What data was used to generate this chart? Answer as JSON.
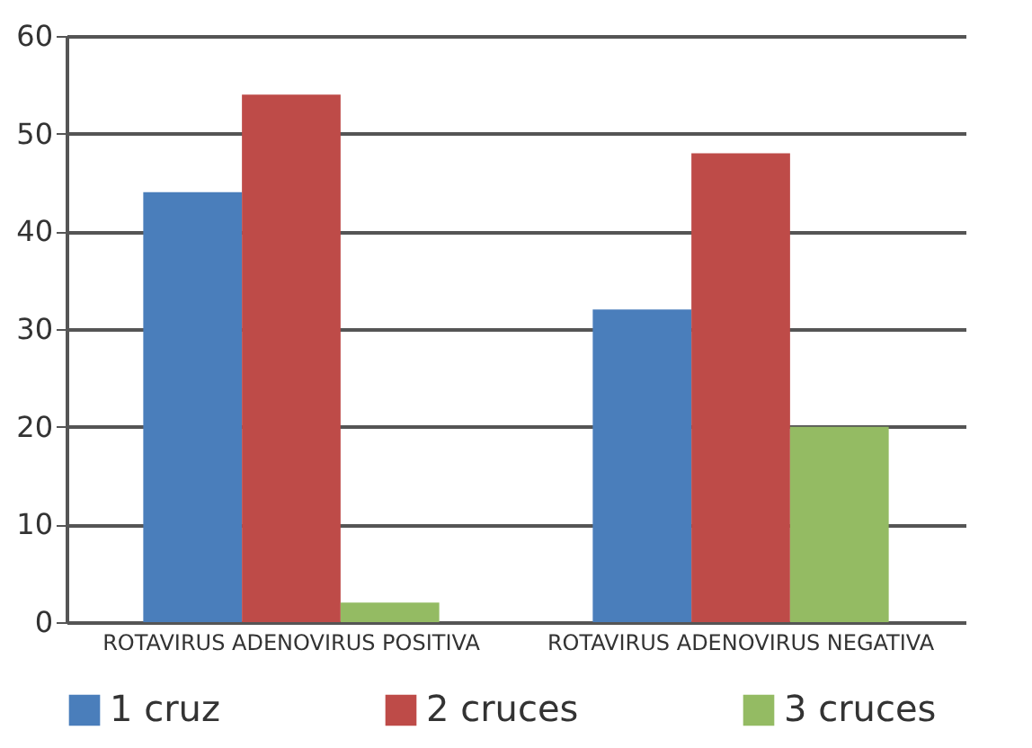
{
  "chart_data": {
    "type": "bar",
    "categories": [
      "ROTAVIRUS ADENOVIRUS POSITIVA",
      "ROTAVIRUS ADENOVIRUS NEGATIVA"
    ],
    "series": [
      {
        "name": "1 cruz",
        "color": "#4a7ebb",
        "values": [
          44,
          32
        ]
      },
      {
        "name": "2 cruces",
        "color": "#be4b48",
        "values": [
          54,
          48
        ]
      },
      {
        "name": "3 cruces",
        "color": "#94bb63",
        "values": [
          2,
          20
        ]
      }
    ],
    "ylim": [
      0,
      60
    ],
    "yticks": [
      0,
      10,
      20,
      30,
      40,
      50,
      60
    ],
    "grid": "y",
    "legend": "bottom"
  }
}
